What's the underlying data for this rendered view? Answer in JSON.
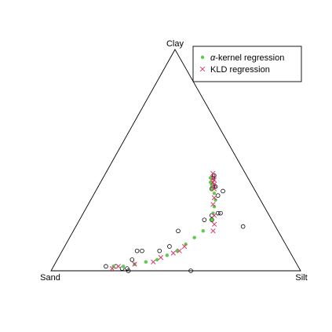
{
  "chart_data": {
    "type": "scatter",
    "plot": "ternary",
    "vertices": {
      "top": "Clay",
      "left": "Sand",
      "right": "Silt"
    },
    "legend": {
      "placement": "top-right",
      "entries": [
        {
          "series": "alpha-kernel",
          "label_prefix": "α",
          "label_rest": "-kernel regression",
          "marker": "filled-circle",
          "color": "#5ccc4a"
        },
        {
          "series": "kld",
          "label": "KLD regression",
          "marker": "x-cross",
          "color": "#d9376a"
        }
      ]
    },
    "observed": {
      "marker": "open-circle",
      "color": "#000000",
      "points": [
        {
          "sand": 0.14,
          "silt": 0.44,
          "clay": 0.42
        },
        {
          "sand": 0.16,
          "silt": 0.46,
          "clay": 0.38
        },
        {
          "sand": 0.13,
          "silt": 0.44,
          "clay": 0.43
        },
        {
          "sand": 0.17,
          "silt": 0.46,
          "clay": 0.37
        },
        {
          "sand": 0.15,
          "silt": 0.47,
          "clay": 0.38
        },
        {
          "sand": 0.13,
          "silt": 0.51,
          "clay": 0.36
        },
        {
          "sand": 0.16,
          "silt": 0.5,
          "clay": 0.34
        },
        {
          "sand": 0.2,
          "silt": 0.54,
          "clay": 0.26
        },
        {
          "sand": 0.23,
          "silt": 0.52,
          "clay": 0.25
        },
        {
          "sand": 0.19,
          "silt": 0.55,
          "clay": 0.26
        },
        {
          "sand": 0.27,
          "silt": 0.5,
          "clay": 0.23
        },
        {
          "sand": 0.24,
          "silt": 0.53,
          "clay": 0.23
        },
        {
          "sand": 0.13,
          "silt": 0.67,
          "clay": 0.2
        },
        {
          "sand": 0.4,
          "silt": 0.42,
          "clay": 0.18
        },
        {
          "sand": 0.47,
          "silt": 0.42,
          "clay": 0.11
        },
        {
          "sand": 0.52,
          "silt": 0.39,
          "clay": 0.09
        },
        {
          "sand": 0.61,
          "silt": 0.3,
          "clay": 0.09
        },
        {
          "sand": 0.59,
          "silt": 0.32,
          "clay": 0.09
        },
        {
          "sand": 0.65,
          "silt": 0.3,
          "clay": 0.05
        },
        {
          "sand": 0.73,
          "silt": 0.25,
          "clay": 0.02
        },
        {
          "sand": 0.69,
          "silt": 0.3,
          "clay": 0.01
        },
        {
          "sand": 0.71,
          "silt": 0.28,
          "clay": 0.01
        },
        {
          "sand": 0.77,
          "silt": 0.21,
          "clay": 0.02
        },
        {
          "sand": 0.69,
          "silt": 0.31,
          "clay": 0.0
        },
        {
          "sand": 0.44,
          "silt": 0.56,
          "clay": 0.0
        }
      ]
    },
    "series": [
      {
        "name": "α-kernel regression",
        "marker": "filled-circle",
        "color": "#5ccc4a",
        "points": [
          {
            "sand": 0.15,
            "silt": 0.43,
            "clay": 0.42
          },
          {
            "sand": 0.16,
            "silt": 0.44,
            "clay": 0.4
          },
          {
            "sand": 0.16,
            "silt": 0.45,
            "clay": 0.39
          },
          {
            "sand": 0.17,
            "silt": 0.46,
            "clay": 0.37
          },
          {
            "sand": 0.17,
            "silt": 0.48,
            "clay": 0.35
          },
          {
            "sand": 0.18,
            "silt": 0.5,
            "clay": 0.32
          },
          {
            "sand": 0.2,
            "silt": 0.51,
            "clay": 0.29
          },
          {
            "sand": 0.22,
            "silt": 0.52,
            "clay": 0.26
          },
          {
            "sand": 0.24,
            "silt": 0.53,
            "clay": 0.23
          },
          {
            "sand": 0.3,
            "silt": 0.52,
            "clay": 0.18
          },
          {
            "sand": 0.35,
            "silt": 0.5,
            "clay": 0.15
          },
          {
            "sand": 0.4,
            "silt": 0.48,
            "clay": 0.12
          },
          {
            "sand": 0.45,
            "silt": 0.46,
            "clay": 0.09
          },
          {
            "sand": 0.5,
            "silt": 0.43,
            "clay": 0.07
          },
          {
            "sand": 0.55,
            "silt": 0.4,
            "clay": 0.05
          },
          {
            "sand": 0.6,
            "silt": 0.36,
            "clay": 0.04
          },
          {
            "sand": 0.65,
            "silt": 0.32,
            "clay": 0.03
          },
          {
            "sand": 0.7,
            "silt": 0.28,
            "clay": 0.02
          },
          {
            "sand": 0.74,
            "silt": 0.24,
            "clay": 0.02
          }
        ]
      },
      {
        "name": "KLD regression",
        "marker": "x-cross",
        "color": "#d9376a",
        "points": [
          {
            "sand": 0.13,
            "silt": 0.43,
            "clay": 0.44
          },
          {
            "sand": 0.14,
            "silt": 0.44,
            "clay": 0.42
          },
          {
            "sand": 0.14,
            "silt": 0.45,
            "clay": 0.41
          },
          {
            "sand": 0.15,
            "silt": 0.45,
            "clay": 0.4
          },
          {
            "sand": 0.15,
            "silt": 0.46,
            "clay": 0.39
          },
          {
            "sand": 0.16,
            "silt": 0.47,
            "clay": 0.37
          },
          {
            "sand": 0.18,
            "silt": 0.49,
            "clay": 0.33
          },
          {
            "sand": 0.2,
            "silt": 0.5,
            "clay": 0.3
          },
          {
            "sand": 0.22,
            "silt": 0.53,
            "clay": 0.25
          },
          {
            "sand": 0.24,
            "silt": 0.55,
            "clay": 0.21
          },
          {
            "sand": 0.26,
            "silt": 0.56,
            "clay": 0.18
          },
          {
            "sand": 0.41,
            "silt": 0.48,
            "clay": 0.11
          },
          {
            "sand": 0.44,
            "silt": 0.47,
            "clay": 0.09
          },
          {
            "sand": 0.47,
            "silt": 0.45,
            "clay": 0.08
          },
          {
            "sand": 0.53,
            "silt": 0.41,
            "clay": 0.06
          },
          {
            "sand": 0.57,
            "silt": 0.39,
            "clay": 0.04
          },
          {
            "sand": 0.65,
            "silt": 0.32,
            "clay": 0.03
          },
          {
            "sand": 0.72,
            "silt": 0.26,
            "clay": 0.02
          },
          {
            "sand": 0.75,
            "silt": 0.24,
            "clay": 0.01
          }
        ]
      }
    ]
  }
}
